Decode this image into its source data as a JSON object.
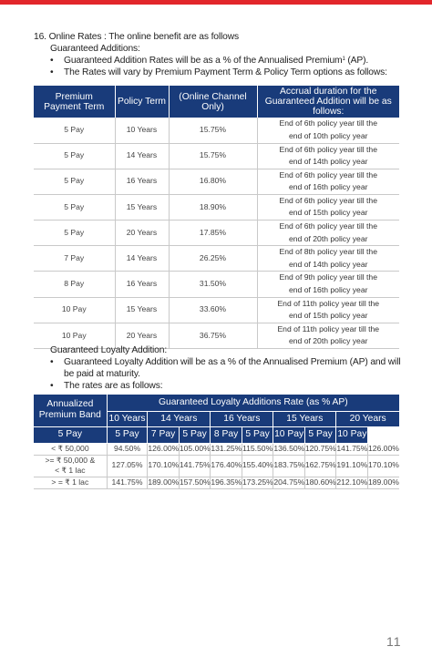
{
  "section": {
    "number": "16.",
    "heading": "Online Rates : The online benefit are as follows",
    "sub_heading": "Guaranteed Additions:",
    "bullets": [
      {
        "text": "Guaranteed Addition Rates will be as a % of the Annualised Premium",
        "sup": "1",
        "suffix": " (AP)."
      },
      {
        "text": "The Rates will vary by Premium Payment Term & Policy Term options as follows:"
      }
    ]
  },
  "ga_table": {
    "headers": [
      "Premium Payment Term",
      "Policy Term",
      "(Online Channel Only)",
      "Accrual duration for the Guaranteed Addition will be as follows:"
    ],
    "rows": [
      {
        "ppt": "5 Pay",
        "pt": "10 Years",
        "rate": "15.75%",
        "acc1": "End of 6th policy year till the",
        "acc2": "end of 10th policy year"
      },
      {
        "ppt": "5 Pay",
        "pt": "14 Years",
        "rate": "15.75%",
        "acc1": "End of 6th policy year till the",
        "acc2": "end of 14th policy year"
      },
      {
        "ppt": "5 Pay",
        "pt": "16 Years",
        "rate": "16.80%",
        "acc1": "End of 6th policy year till the",
        "acc2": "end of 16th policy year"
      },
      {
        "ppt": "5 Pay",
        "pt": "15 Years",
        "rate": "18.90%",
        "acc1": "End of 6th policy year till the",
        "acc2": "end of 15th policy year"
      },
      {
        "ppt": "5 Pay",
        "pt": "20 Years",
        "rate": "17.85%",
        "acc1": "End of 6th policy year till the",
        "acc2": "end of 20th policy year"
      },
      {
        "ppt": "7 Pay",
        "pt": "14 Years",
        "rate": "26.25%",
        "acc1": "End of 8th policy year till the",
        "acc2": "end of 14th policy year"
      },
      {
        "ppt": "8 Pay",
        "pt": "16 Years",
        "rate": "31.50%",
        "acc1": "End of 9th policy year till the",
        "acc2": "end of 16th policy year"
      },
      {
        "ppt": "10 Pay",
        "pt": "15 Years",
        "rate": "33.60%",
        "acc1": "End of 11th policy year till the",
        "acc2": "end of 15th policy year"
      },
      {
        "ppt": "10 Pay",
        "pt": "20 Years",
        "rate": "36.75%",
        "acc1": "End of 11th policy year till the",
        "acc2": "end of 20th policy year"
      }
    ]
  },
  "loyalty": {
    "heading": "Guaranteed Loyalty Addition:",
    "bullets": [
      "Guaranteed Loyalty Addition will be as a % of the Annualised Premium (AP) and will be paid at maturity.",
      "The rates are as follows:"
    ]
  },
  "gla_table": {
    "band_header": "Annualized Premium Band",
    "rate_header": "Guaranteed Loyalty Additions Rate (as % AP)",
    "terms": [
      "10 Years",
      "14 Years",
      "16 Years",
      "15 Years",
      "20 Years"
    ],
    "pays": [
      "5 Pay",
      "5 Pay",
      "7 Pay",
      "5 Pay",
      "8 Pay",
      "5 Pay",
      "10 Pay",
      "5 Pay",
      "10 Pay"
    ],
    "rows": [
      {
        "band1": "< ₹ 50,000",
        "band2": "",
        "values": [
          "94.50%",
          "126.00%",
          "105.00%",
          "131.25%",
          "115.50%",
          "136.50%",
          "120.75%",
          "141.75%",
          "126.00%"
        ]
      },
      {
        "band1": ">= ₹ 50,000 &",
        "band2": "< ₹ 1 lac",
        "values": [
          "127.05%",
          "170.10%",
          "141.75%",
          "176.40%",
          "155.40%",
          "183.75%",
          "162.75%",
          "191.10%",
          "170.10%"
        ]
      },
      {
        "band1": "> = ₹ 1 lac",
        "band2": "",
        "values": [
          "141.75%",
          "189.00%",
          "157.50%",
          "196.35%",
          "173.25%",
          "204.75%",
          "180.60%",
          "212.10%",
          "189.00%"
        ]
      }
    ]
  },
  "page_number": "11",
  "colors": {
    "header_bg": "#193b7a",
    "accent_bar": "#e2262b"
  }
}
